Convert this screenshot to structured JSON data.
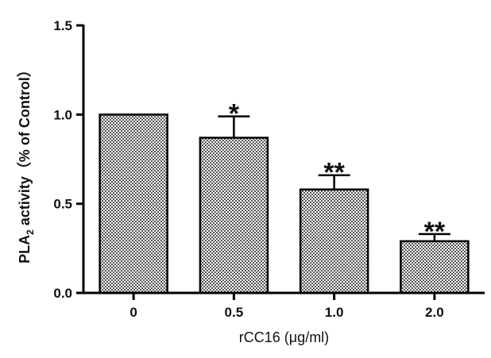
{
  "chart_data": {
    "type": "bar",
    "title": "",
    "xlabel": "rCC16 (μg/ml)",
    "ylabel_prefix": "PLA",
    "ylabel_subscript": "2",
    "ylabel_suffix": " activity（% of Control）",
    "categories": [
      "0",
      "0.5",
      "1.0",
      "2.0"
    ],
    "values": [
      1.0,
      0.87,
      0.58,
      0.29
    ],
    "errors": [
      0.0,
      0.12,
      0.08,
      0.04
    ],
    "significance": [
      "",
      "*",
      "**",
      "**"
    ],
    "ylim": [
      0,
      1.5
    ],
    "yticks": [
      "0.0",
      "0.5",
      "1.0",
      "1.5"
    ],
    "grid": false
  }
}
